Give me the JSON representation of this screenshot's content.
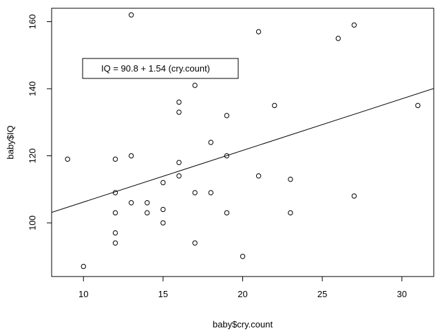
{
  "chart_data": {
    "type": "scatter",
    "title": "",
    "xlabel": "baby$cry.count",
    "ylabel": "baby$IQ",
    "xlim": [
      8,
      32
    ],
    "ylim": [
      84,
      164
    ],
    "x_ticks": [
      10,
      15,
      20,
      25,
      30
    ],
    "y_ticks": [
      100,
      120,
      140,
      160
    ],
    "x_tick_labels": [
      "10",
      "15",
      "20",
      "25",
      "30"
    ],
    "y_tick_labels": [
      "100",
      "120",
      "140",
      "160"
    ],
    "grid": false,
    "points": [
      {
        "x": 9,
        "y": 119
      },
      {
        "x": 10,
        "y": 87
      },
      {
        "x": 12,
        "y": 119
      },
      {
        "x": 12,
        "y": 109
      },
      {
        "x": 12,
        "y": 103
      },
      {
        "x": 12,
        "y": 97
      },
      {
        "x": 12,
        "y": 94
      },
      {
        "x": 13,
        "y": 162
      },
      {
        "x": 13,
        "y": 120
      },
      {
        "x": 13,
        "y": 106
      },
      {
        "x": 14,
        "y": 106
      },
      {
        "x": 14,
        "y": 103
      },
      {
        "x": 15,
        "y": 112
      },
      {
        "x": 15,
        "y": 104
      },
      {
        "x": 15,
        "y": 100
      },
      {
        "x": 16,
        "y": 136
      },
      {
        "x": 16,
        "y": 133
      },
      {
        "x": 16,
        "y": 118
      },
      {
        "x": 16,
        "y": 114
      },
      {
        "x": 17,
        "y": 141
      },
      {
        "x": 17,
        "y": 109
      },
      {
        "x": 17,
        "y": 94
      },
      {
        "x": 18,
        "y": 124
      },
      {
        "x": 18,
        "y": 109
      },
      {
        "x": 19,
        "y": 132
      },
      {
        "x": 19,
        "y": 120
      },
      {
        "x": 19,
        "y": 103
      },
      {
        "x": 20,
        "y": 90
      },
      {
        "x": 21,
        "y": 157
      },
      {
        "x": 21,
        "y": 114
      },
      {
        "x": 22,
        "y": 135
      },
      {
        "x": 23,
        "y": 113
      },
      {
        "x": 23,
        "y": 103
      },
      {
        "x": 26,
        "y": 155
      },
      {
        "x": 27,
        "y": 159
      },
      {
        "x": 27,
        "y": 108
      },
      {
        "x": 31,
        "y": 135
      }
    ],
    "regression": {
      "intercept": 90.8,
      "slope": 1.54
    },
    "legend": {
      "text": "IQ =  90.8 + 1.54 (cry.count)",
      "placement": "top-left"
    }
  }
}
